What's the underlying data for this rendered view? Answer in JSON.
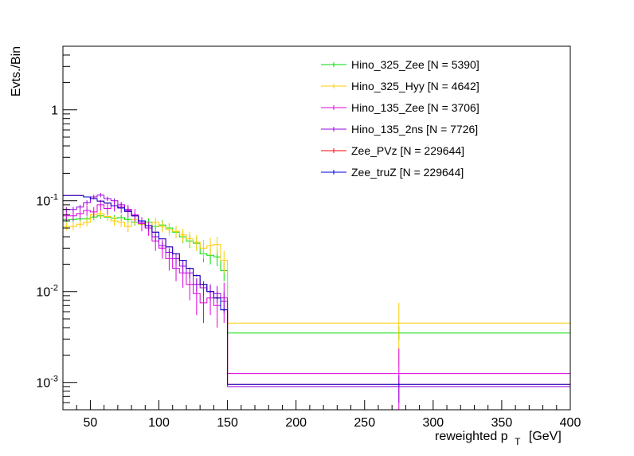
{
  "chart_data": {
    "type": "line",
    "subtype": "step-histogram-with-error-bars",
    "title": "",
    "xlabel": "reweighted p",
    "xlabel_sub": "T",
    "xlabel_unit": "[GeV]",
    "ylabel": "Evts./Bin",
    "xlim": [
      30,
      400
    ],
    "ylog": true,
    "ylim": [
      0.0005,
      5
    ],
    "grid": false,
    "legend_position": "top-right",
    "xticks": [
      50,
      100,
      150,
      200,
      250,
      300,
      350,
      400
    ],
    "yticks": [
      {
        "value": 0.001,
        "base": "10",
        "exp": "-3"
      },
      {
        "value": 0.01,
        "base": "10",
        "exp": "-2"
      },
      {
        "value": 0.1,
        "base": "10",
        "exp": "-1"
      },
      {
        "value": 1,
        "base": "1",
        "exp": ""
      }
    ],
    "bin_edges": [
      30,
      35,
      40,
      45,
      50,
      55,
      60,
      65,
      70,
      75,
      80,
      85,
      90,
      95,
      100,
      105,
      110,
      115,
      120,
      125,
      130,
      135,
      140,
      145,
      150,
      400
    ],
    "series": [
      {
        "name": "Hino_325_Zee [N = 5390]",
        "color": "#00dd00",
        "values": [
          0.062,
          0.062,
          0.063,
          0.063,
          0.066,
          0.068,
          0.066,
          0.064,
          0.065,
          0.062,
          0.058,
          0.055,
          0.058,
          0.052,
          0.054,
          0.05,
          0.045,
          0.04,
          0.036,
          0.034,
          0.026,
          0.025,
          0.024,
          0.017,
          0.0035
        ],
        "errors": [
          0.004,
          0.004,
          0.004,
          0.004,
          0.005,
          0.005,
          0.005,
          0.005,
          0.005,
          0.005,
          0.005,
          0.005,
          0.006,
          0.006,
          0.007,
          0.006,
          0.006,
          0.006,
          0.006,
          0.006,
          0.005,
          0.005,
          0.005,
          0.004,
          0.0006
        ]
      },
      {
        "name": "Hino_325_Hyy [N = 4642]",
        "color": "#ffcc00",
        "values": [
          0.052,
          0.052,
          0.055,
          0.058,
          0.07,
          0.072,
          0.067,
          0.06,
          0.058,
          0.052,
          0.062,
          0.055,
          0.05,
          0.058,
          0.052,
          0.048,
          0.046,
          0.042,
          0.038,
          0.035,
          0.03,
          0.032,
          0.033,
          0.022,
          0.0045
        ],
        "errors": [
          0.005,
          0.005,
          0.005,
          0.006,
          0.007,
          0.007,
          0.007,
          0.007,
          0.007,
          0.007,
          0.007,
          0.007,
          0.007,
          0.007,
          0.007,
          0.007,
          0.007,
          0.007,
          0.007,
          0.007,
          0.007,
          0.007,
          0.007,
          0.006,
          0.003
        ]
      },
      {
        "name": "Hino_135_Zee [N = 3706]",
        "color": "#dd00dd",
        "values": [
          0.068,
          0.068,
          0.072,
          0.078,
          0.075,
          0.09,
          0.082,
          0.088,
          0.085,
          0.078,
          0.07,
          0.056,
          0.05,
          0.036,
          0.03,
          0.023,
          0.018,
          0.016,
          0.012,
          0.0095,
          0.0075,
          0.0085,
          0.007,
          0.0085,
          0.00125
        ],
        "errors": [
          0.008,
          0.008,
          0.009,
          0.01,
          0.01,
          0.012,
          0.012,
          0.012,
          0.012,
          0.012,
          0.011,
          0.01,
          0.009,
          0.008,
          0.007,
          0.006,
          0.005,
          0.005,
          0.004,
          0.004,
          0.003,
          0.003,
          0.003,
          0.004,
          0.0011
        ]
      },
      {
        "name": "Hino_135_2ns [N = 7726]",
        "color": "#9900dd",
        "values": [
          0.08,
          0.08,
          0.085,
          0.095,
          0.11,
          0.115,
          0.105,
          0.1,
          0.09,
          0.08,
          0.068,
          0.058,
          0.05,
          0.04,
          0.032,
          0.027,
          0.023,
          0.019,
          0.016,
          0.012,
          0.011,
          0.01,
          0.0095,
          0.0078,
          0.0009
        ],
        "errors": [
          0.005,
          0.005,
          0.005,
          0.006,
          0.006,
          0.006,
          0.006,
          0.006,
          0.005,
          0.005,
          0.005,
          0.004,
          0.004,
          0.004,
          0.003,
          0.003,
          0.003,
          0.003,
          0.002,
          0.002,
          0.002,
          0.002,
          0.002,
          0.002,
          0.0003
        ]
      },
      {
        "name": "Zee_PVz [N = 229644]",
        "color": "#ff0000",
        "values": [
          0.114,
          0.114,
          0.114,
          0.11,
          0.105,
          0.099,
          0.094,
          0.088,
          0.083,
          0.076,
          0.068,
          0.06,
          0.053,
          0.045,
          0.038,
          0.031,
          0.026,
          0.022,
          0.018,
          0.015,
          0.012,
          0.01,
          0.0085,
          0.0063,
          0.00095
        ],
        "errors": [
          0.0007,
          0.0007,
          0.0007,
          0.0007,
          0.0007,
          0.0006,
          0.0006,
          0.0006,
          0.0006,
          0.0005,
          0.0005,
          0.0005,
          0.0005,
          0.0004,
          0.0004,
          0.0004,
          0.0003,
          0.0003,
          0.0003,
          0.0003,
          0.0002,
          0.0002,
          0.0002,
          0.0002,
          2e-05
        ]
      },
      {
        "name": "Zee_truZ [N = 229644]",
        "color": "#0000dd",
        "values": [
          0.114,
          0.114,
          0.114,
          0.11,
          0.105,
          0.099,
          0.094,
          0.088,
          0.083,
          0.076,
          0.068,
          0.06,
          0.053,
          0.045,
          0.038,
          0.031,
          0.026,
          0.022,
          0.018,
          0.015,
          0.012,
          0.01,
          0.0085,
          0.0063,
          0.00095
        ],
        "errors": [
          0.0007,
          0.0007,
          0.0007,
          0.0007,
          0.0007,
          0.0006,
          0.0006,
          0.0006,
          0.0006,
          0.0005,
          0.0005,
          0.0005,
          0.0005,
          0.0004,
          0.0004,
          0.0004,
          0.0003,
          0.0003,
          0.0003,
          0.0003,
          0.0002,
          0.0002,
          0.0002,
          0.0002,
          2e-05
        ]
      }
    ]
  }
}
